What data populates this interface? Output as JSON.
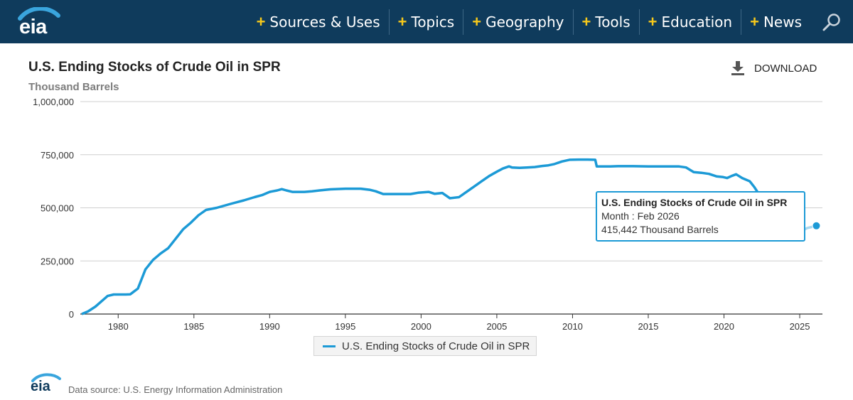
{
  "header": {
    "logo_text": "eia",
    "nav": [
      {
        "label": "Sources & Uses"
      },
      {
        "label": "Topics"
      },
      {
        "label": "Geography"
      },
      {
        "label": "Tools"
      },
      {
        "label": "Education"
      },
      {
        "label": "News"
      }
    ],
    "plus_glyph": "+",
    "search_icon": "search-icon",
    "colors": {
      "bar_bg": "#0f3b5c",
      "plus": "#f7c91b",
      "series": "#1c9ad6"
    }
  },
  "download_label": "DOWNLOAD",
  "tooltip": {
    "title": "U.S. Ending Stocks of Crude Oil in SPR",
    "month_line": "Month : Feb 2026",
    "value_line": "415,442 Thousand Barrels"
  },
  "footer": {
    "logo_text": "eia",
    "source": "Data source: U.S. Energy Information Administration"
  },
  "chart_data": {
    "type": "line",
    "title": "U.S. Ending Stocks of Crude Oil in SPR",
    "subtitle": "Thousand Barrels",
    "xlabel": "",
    "ylabel": "",
    "xlim": [
      1977.5,
      2026.5
    ],
    "ylim": [
      0,
      1000000
    ],
    "x_ticks": [
      1980,
      1985,
      1990,
      1995,
      2000,
      2005,
      2010,
      2015,
      2020,
      2025
    ],
    "y_ticks": [
      0,
      250000,
      500000,
      750000,
      1000000
    ],
    "y_tick_labels": [
      "0",
      "250,000",
      "500,000",
      "750,000",
      "1,000,000"
    ],
    "grid": true,
    "legend": "bottom-center",
    "series": [
      {
        "name": "U.S. Ending Stocks of Crude Oil in SPR",
        "color": "#1c9ad6",
        "x": [
          1977.6,
          1978.0,
          1978.5,
          1978.9,
          1979.3,
          1979.7,
          1980.5,
          1980.8,
          1981.3,
          1981.8,
          1982.3,
          1982.8,
          1983.3,
          1983.8,
          1984.3,
          1984.8,
          1985.3,
          1985.8,
          1986.5,
          1987.5,
          1988.3,
          1989.0,
          1989.5,
          1990.0,
          1990.5,
          1990.8,
          1991.1,
          1991.5,
          1992.3,
          1992.8,
          1993.3,
          1994.0,
          1995.0,
          1996.0,
          1996.6,
          1997.0,
          1997.5,
          1998.0,
          1998.5,
          1999.3,
          1999.8,
          2000.5,
          2000.9,
          2001.4,
          2001.9,
          2002.5,
          2003.0,
          2003.5,
          2004.0,
          2004.5,
          2005.0,
          2005.4,
          2005.8,
          2006.0,
          2006.5,
          2007.0,
          2007.5,
          2008.0,
          2008.4,
          2008.8,
          2009.3,
          2009.8,
          2010.4,
          2011.0,
          2011.5,
          2011.6,
          2012.5,
          2013.0,
          2014.0,
          2015.0,
          2016.0,
          2017.0,
          2017.5,
          2018.0,
          2018.5,
          2019.0,
          2019.5,
          2019.9,
          2020.2,
          2020.5,
          2020.8,
          2021.2,
          2021.7,
          2022.0,
          2022.3,
          2022.6,
          2022.9,
          2023.2,
          2023.5,
          2023.8,
          2024.2,
          2024.6,
          2025.0,
          2025.5,
          2026.1
        ],
        "values": [
          0,
          12000,
          35000,
          60000,
          85000,
          92000,
          92000,
          93000,
          120000,
          210000,
          255000,
          285000,
          310000,
          355000,
          400000,
          430000,
          465000,
          490000,
          500000,
          520000,
          535000,
          550000,
          560000,
          575000,
          582000,
          588000,
          582000,
          575000,
          575000,
          578000,
          582000,
          587000,
          590000,
          590000,
          585000,
          578000,
          565000,
          565000,
          565000,
          565000,
          571000,
          575000,
          566000,
          570000,
          545000,
          550000,
          575000,
          600000,
          625000,
          650000,
          670000,
          685000,
          695000,
          690000,
          688000,
          690000,
          692000,
          697000,
          700000,
          706000,
          718000,
          726000,
          727000,
          727000,
          726000,
          695000,
          695000,
          696000,
          696000,
          695000,
          695000,
          695000,
          690000,
          668000,
          665000,
          660000,
          648000,
          645000,
          640000,
          650000,
          658000,
          640000,
          625000,
          598000,
          565000,
          480000,
          420000,
          372000,
          365000,
          350000,
          360000,
          372000,
          388000,
          405000,
          415442
        ]
      }
    ],
    "highlight_point": {
      "x": 2026.1,
      "y": 415442
    }
  }
}
